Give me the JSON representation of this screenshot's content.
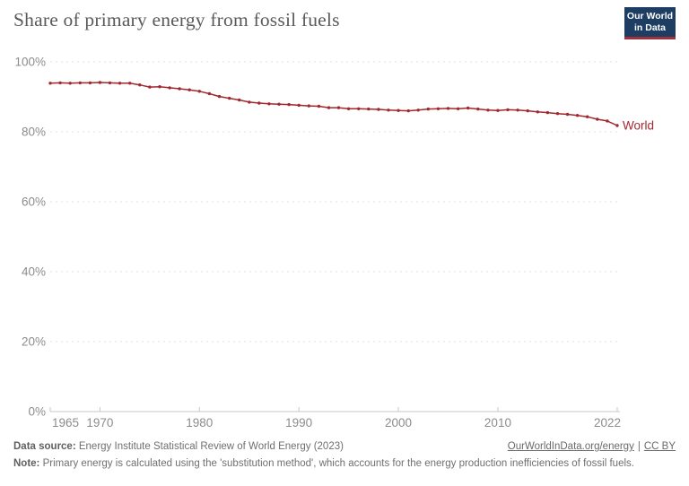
{
  "header": {
    "title": "Share of primary energy from fossil fuels",
    "logo": {
      "line1": "Our World",
      "line2": "in Data"
    }
  },
  "chart_data": {
    "type": "line",
    "title": "Share of primary energy from fossil fuels",
    "xlabel": "",
    "ylabel": "",
    "xlim": [
      1965,
      2022
    ],
    "ylim": [
      0,
      100
    ],
    "y_ticks": [
      0,
      20,
      40,
      60,
      80,
      100
    ],
    "y_tick_suffix": "%",
    "x_ticks": [
      1965,
      1970,
      1980,
      1990,
      2000,
      2010,
      2022
    ],
    "grid": "horizontal-dashed",
    "legend_position": "end-of-line-label",
    "series": [
      {
        "name": "World",
        "color": "#a1282f",
        "x": [
          1965,
          1966,
          1967,
          1968,
          1969,
          1970,
          1971,
          1972,
          1973,
          1974,
          1975,
          1976,
          1977,
          1978,
          1979,
          1980,
          1981,
          1982,
          1983,
          1984,
          1985,
          1986,
          1987,
          1988,
          1989,
          1990,
          1991,
          1992,
          1993,
          1994,
          1995,
          1996,
          1997,
          1998,
          1999,
          2000,
          2001,
          2002,
          2003,
          2004,
          2005,
          2006,
          2007,
          2008,
          2009,
          2010,
          2011,
          2012,
          2013,
          2014,
          2015,
          2016,
          2017,
          2018,
          2019,
          2020,
          2021,
          2022
        ],
        "values": [
          93.9,
          94.0,
          93.9,
          94.0,
          94.0,
          94.1,
          94.0,
          93.9,
          93.9,
          93.4,
          92.8,
          92.9,
          92.6,
          92.3,
          92.0,
          91.6,
          90.9,
          90.1,
          89.6,
          89.1,
          88.5,
          88.2,
          88.0,
          87.9,
          87.8,
          87.6,
          87.4,
          87.3,
          86.9,
          86.9,
          86.6,
          86.6,
          86.5,
          86.4,
          86.2,
          86.1,
          86.0,
          86.2,
          86.5,
          86.6,
          86.7,
          86.6,
          86.8,
          86.5,
          86.2,
          86.1,
          86.3,
          86.2,
          86.0,
          85.7,
          85.5,
          85.2,
          85.0,
          84.7,
          84.3,
          83.6,
          83.1,
          81.8
        ]
      }
    ]
  },
  "colors": {
    "series_line": "#a1282f",
    "title_text": "#5a5a5a",
    "tick_text": "#8c8c8c",
    "grid_line": "#e0e0e0",
    "axis_line": "#c8c8c8",
    "logo_bg": "#1d3d63",
    "logo_accent": "#a0323c",
    "footer_text": "#6f6f6f"
  },
  "footer": {
    "data_source_label": "Data source:",
    "data_source_text": " Energy Institute Statistical Review of World Energy (2023)",
    "link_energy": "OurWorldInData.org/energy",
    "separator": "|",
    "link_license": "CC BY",
    "note_label": "Note:",
    "note_text": " Primary energy is calculated using the 'substitution method', which accounts for the energy production inefficiencies of fossil fuels."
  }
}
